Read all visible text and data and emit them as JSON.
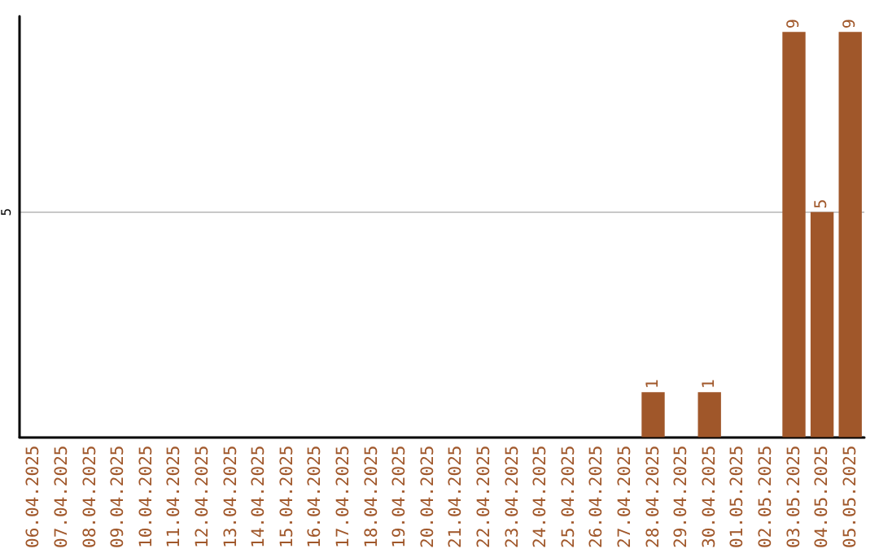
{
  "chart_data": {
    "type": "bar",
    "categories": [
      "06.04.2025",
      "07.04.2025",
      "08.04.2025",
      "09.04.2025",
      "10.04.2025",
      "11.04.2025",
      "12.04.2025",
      "13.04.2025",
      "14.04.2025",
      "15.04.2025",
      "16.04.2025",
      "17.04.2025",
      "18.04.2025",
      "19.04.2025",
      "20.04.2025",
      "21.04.2025",
      "22.04.2025",
      "23.04.2025",
      "24.04.2025",
      "25.04.2025",
      "26.04.2025",
      "27.04.2025",
      "28.04.2025",
      "29.04.2025",
      "30.04.2025",
      "01.05.2025",
      "02.05.2025",
      "03.05.2025",
      "04.05.2025",
      "05.05.2025"
    ],
    "values": [
      null,
      null,
      null,
      null,
      null,
      null,
      null,
      null,
      null,
      null,
      null,
      null,
      null,
      null,
      null,
      null,
      null,
      null,
      null,
      null,
      null,
      null,
      1,
      null,
      1,
      null,
      null,
      9,
      5,
      9
    ],
    "color": "#a0572a",
    "ylim": [
      0,
      9.35
    ],
    "yticks": [
      5
    ],
    "grid": "y",
    "data_labels": true
  }
}
